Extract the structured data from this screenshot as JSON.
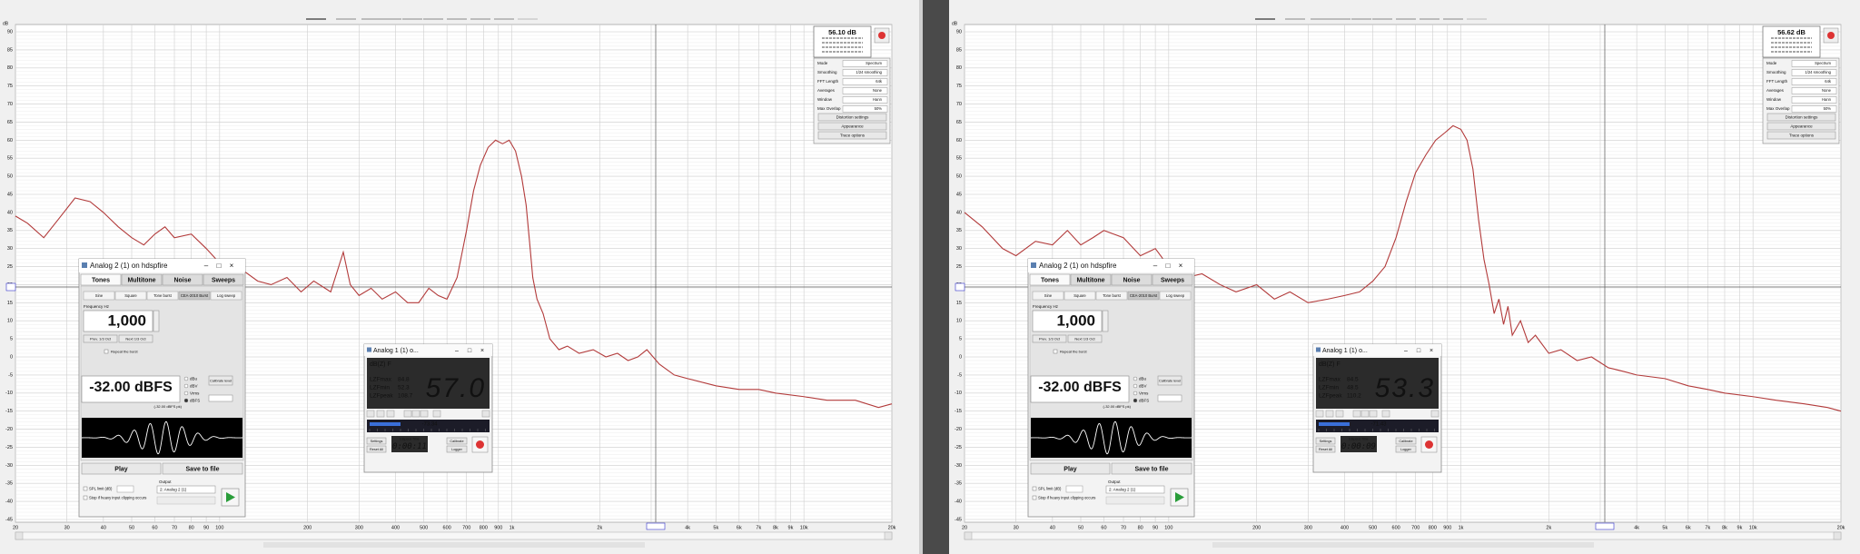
{
  "axis": {
    "y_unit": "dB",
    "xlim": [
      20,
      20000
    ],
    "ylim": [
      -45,
      90
    ],
    "yticks": [
      90,
      85,
      80,
      75,
      70,
      65,
      60,
      55,
      50,
      45,
      40,
      35,
      30,
      25,
      20,
      15,
      10,
      5,
      0,
      -5,
      -10,
      -15,
      -20,
      -25,
      -30,
      -35,
      -40,
      -45
    ],
    "xticks": [
      20,
      30,
      40,
      50,
      60,
      70,
      80,
      90,
      100,
      200,
      300,
      400,
      500,
      600,
      700,
      800,
      900,
      {
        "value": 1000,
        "label": "1k"
      },
      {
        "value": 2000,
        "label": "2k"
      },
      {
        "value": 3000,
        "label": "3k"
      },
      {
        "value": 4000,
        "label": "4k"
      },
      {
        "value": 5000,
        "label": "5k"
      },
      {
        "value": 6000,
        "label": "6k"
      },
      {
        "value": 7000,
        "label": "7k"
      },
      {
        "value": 8000,
        "label": "8k"
      },
      {
        "value": 9000,
        "label": "9k"
      },
      {
        "value": 10000,
        "label": "10k"
      },
      {
        "value": 20000,
        "label": "20k"
      }
    ]
  },
  "settings": {
    "rows": [
      [
        "Mode",
        "Spectrum"
      ],
      [
        "Smoothing",
        "1/24 smoothing"
      ],
      [
        "FFT Length",
        "64k"
      ],
      [
        "Averages",
        "None"
      ],
      [
        "Window",
        "Hann"
      ],
      [
        "Max Overlap",
        "50%"
      ]
    ],
    "buttons": [
      "Distortion settings",
      "Appearance",
      "Trace options"
    ]
  },
  "generator": {
    "title": "Analog 2 (1) on hdspfire",
    "tabs": [
      "Tones",
      "Multitone",
      "Noise",
      "Sweeps"
    ],
    "subtabs": [
      "Sine",
      "Square",
      "Tone burst",
      "CEA-2010 Burst",
      "Log sweep"
    ],
    "freq_label": "Frequency Hz",
    "freq": "1,000",
    "prev": "Prev. 1/3 Oct",
    "next": "Next 1/3 Oct",
    "repeat": "Repeat the burst",
    "level": "-32.00 dBFS",
    "units": [
      "dBu",
      "dBV",
      "Vrms",
      "dBFS"
    ],
    "calibrate": "Calibrate level",
    "peak": "(-32.00 dBFS pk)",
    "buttons": [
      "Play",
      "Save to file"
    ],
    "spl_limit": "SPL limit (dB)",
    "stop": "Stop if heavy input clipping occurs",
    "output_label": "Output",
    "output": "2: Analog 2 (1)"
  },
  "meter_buttons": [
    "Settings",
    "Reset All",
    "Calibrate",
    "Logger"
  ],
  "panels": [
    {
      "info": "56.10 dB",
      "meter": {
        "title": "Analog 1 (1) o...",
        "mode": "dB(Z) F",
        "rows": [
          [
            "LZFmax",
            "84.8"
          ],
          [
            "LZFmin",
            "52.3"
          ],
          [
            "LZFpeak",
            "108.7"
          ]
        ],
        "reading": "57.0",
        "peak": "-73.34",
        "elapsed_label": "Elapsed Time",
        "elapsed": "0:00:11"
      },
      "trace": {
        "freq": [
          20,
          22,
          25,
          28,
          32,
          36,
          40,
          45,
          50,
          55,
          60,
          65,
          70,
          80,
          90,
          100,
          110,
          120,
          135,
          150,
          170,
          190,
          210,
          240,
          265,
          280,
          300,
          330,
          360,
          400,
          440,
          480,
          520,
          560,
          600,
          650,
          700,
          740,
          780,
          830,
          880,
          930,
          980,
          1030,
          1080,
          1120,
          1150,
          1180,
          1220,
          1280,
          1350,
          1450,
          1550,
          1700,
          1900,
          2100,
          2300,
          2500,
          2700,
          2900,
          3200,
          3600,
          4000,
          5000,
          6000,
          7000,
          8000,
          10000,
          12000,
          15000,
          18000,
          20000
        ],
        "db": [
          39,
          37,
          33,
          38,
          44,
          43,
          40,
          36,
          33,
          31,
          34,
          36,
          33,
          34,
          30,
          26,
          22,
          24,
          21,
          20,
          22,
          18,
          21,
          18,
          29,
          20,
          17,
          19,
          16,
          18,
          15,
          15,
          19,
          17,
          16,
          22,
          35,
          46,
          53,
          58,
          60,
          59,
          60,
          57,
          50,
          42,
          32,
          22,
          16,
          12,
          5,
          2,
          3,
          1,
          2,
          0,
          1,
          -1,
          0,
          2,
          -2,
          -5,
          -6,
          -8,
          -9,
          -9,
          -10,
          -11,
          -12,
          -12,
          -14,
          -13
        ]
      }
    },
    {
      "info": "56.62 dB",
      "meter": {
        "title": "Analog 1 (1) o...",
        "mode": "dB(Z) F",
        "rows": [
          [
            "LZFmax",
            "84.5"
          ],
          [
            "LZFmin",
            "48.5"
          ],
          [
            "LZFpeak",
            "110.2"
          ]
        ],
        "reading": "53.3",
        "peak": "-71.43",
        "elapsed_label": "Elapsed Time",
        "elapsed": "0:00:09"
      },
      "trace": {
        "freq": [
          20,
          23,
          27,
          30,
          35,
          40,
          45,
          50,
          55,
          60,
          70,
          80,
          90,
          100,
          115,
          130,
          150,
          170,
          200,
          230,
          260,
          300,
          350,
          400,
          450,
          500,
          550,
          600,
          650,
          700,
          760,
          820,
          880,
          940,
          1000,
          1050,
          1100,
          1150,
          1200,
          1250,
          1300,
          1350,
          1400,
          1450,
          1500,
          1600,
          1700,
          1800,
          2000,
          2200,
          2500,
          2800,
          3200,
          3600,
          4000,
          5000,
          6000,
          7000,
          8000,
          10000,
          12000,
          15000,
          18000,
          20000
        ],
        "db": [
          40,
          36,
          30,
          28,
          32,
          31,
          35,
          31,
          33,
          35,
          33,
          28,
          30,
          25,
          22,
          23,
          20,
          18,
          20,
          16,
          18,
          15,
          16,
          17,
          18,
          21,
          25,
          33,
          43,
          51,
          56,
          60,
          62,
          64,
          63,
          60,
          52,
          38,
          27,
          20,
          12,
          16,
          9,
          14,
          6,
          10,
          4,
          6,
          1,
          2,
          -1,
          0,
          -3,
          -4,
          -5,
          -6,
          -8,
          -9,
          -10,
          -11,
          -12,
          -13,
          -14,
          -15
        ]
      }
    }
  ]
}
